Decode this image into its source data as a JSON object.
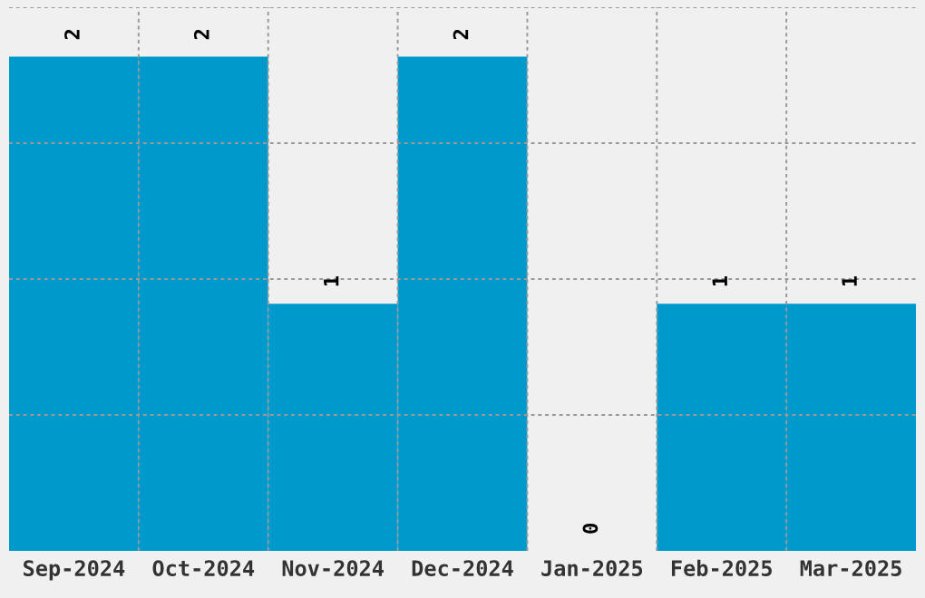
{
  "chart_data": {
    "type": "bar",
    "categories": [
      "Sep-2024",
      "Oct-2024",
      "Nov-2024",
      "Dec-2024",
      "Jan-2025",
      "Feb-2025",
      "Mar-2025"
    ],
    "values": [
      2,
      2,
      1,
      2,
      0,
      1,
      1
    ],
    "color": "#0099cc",
    "ylim": [
      0,
      2.2
    ],
    "yticks": [
      {
        "value": 0.55,
        "label": null
      },
      {
        "value": 1.1,
        "label": null
      },
      {
        "value": 1.65,
        "label": null
      },
      {
        "value": 2.2,
        "label": null
      }
    ],
    "tick_labels": "x",
    "grid": true,
    "data_labels": true
  }
}
